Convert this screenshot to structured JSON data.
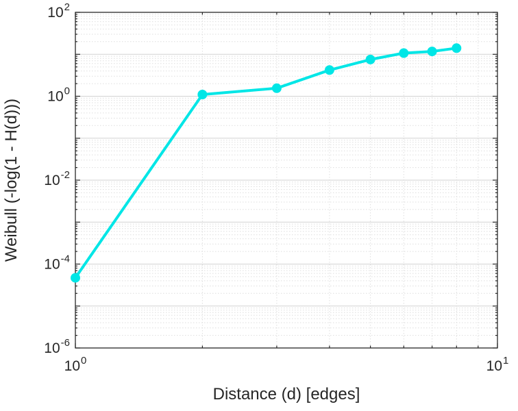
{
  "figure": {
    "background": "#ffffff"
  },
  "chart_data": {
    "type": "line",
    "title": "",
    "xlabel": "Distance (d) [edges]",
    "ylabel": "Weibull (-log(1 - H(d)))",
    "xscale": "log",
    "yscale": "log",
    "xlim": [
      1,
      10
    ],
    "ylim": [
      1e-06,
      100
    ],
    "x": [
      1,
      2,
      3,
      4,
      5,
      6,
      7,
      8
    ],
    "y": [
      4.7e-05,
      1.1,
      1.55,
      4.2,
      7.5,
      10.7,
      11.7,
      14
    ],
    "line_color": "#00e6e6",
    "marker": "o",
    "marker_fill": "#00e6e6",
    "grid": "on",
    "minor_grid": "on",
    "legend": "none",
    "x_tick_exponents": [
      0,
      1
    ],
    "y_tick_exponents": [
      2,
      0,
      -2,
      -4,
      -6
    ],
    "tick_label_base": "10"
  }
}
